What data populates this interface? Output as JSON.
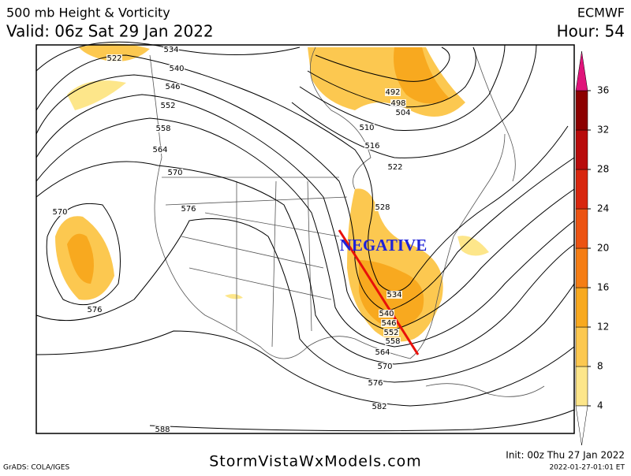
{
  "header": {
    "title": "500 mb Height & Vorticity",
    "valid": "Valid: 06z Sat 29 Jan 2022",
    "model": "ECMWF",
    "hour": "Hour: 54"
  },
  "annotation": "NEGATIVE",
  "contour_labels": [
    522,
    534,
    540,
    546,
    552,
    558,
    564,
    570,
    576,
    570,
    576,
    588,
    492,
    498,
    504,
    510,
    516,
    522,
    528,
    534,
    540,
    546,
    552,
    558,
    564,
    570,
    576,
    582
  ],
  "colorbar": {
    "ticks": [
      4,
      8,
      12,
      16,
      20,
      24,
      28,
      32,
      36
    ],
    "colors": [
      "#fde68a",
      "#fcc850",
      "#f8a91f",
      "#f57d14",
      "#ec5312",
      "#d8260e",
      "#b80b0b",
      "#8c0000"
    ],
    "over_color": "#e0147a"
  },
  "footer": {
    "grads": "GrADS: COLA/IGES",
    "site": "StormVistaWxModels.com",
    "init": "Init: 00z Thu 27 Jan 2022",
    "timestamp": "2022-01-27-01:01 ET"
  }
}
